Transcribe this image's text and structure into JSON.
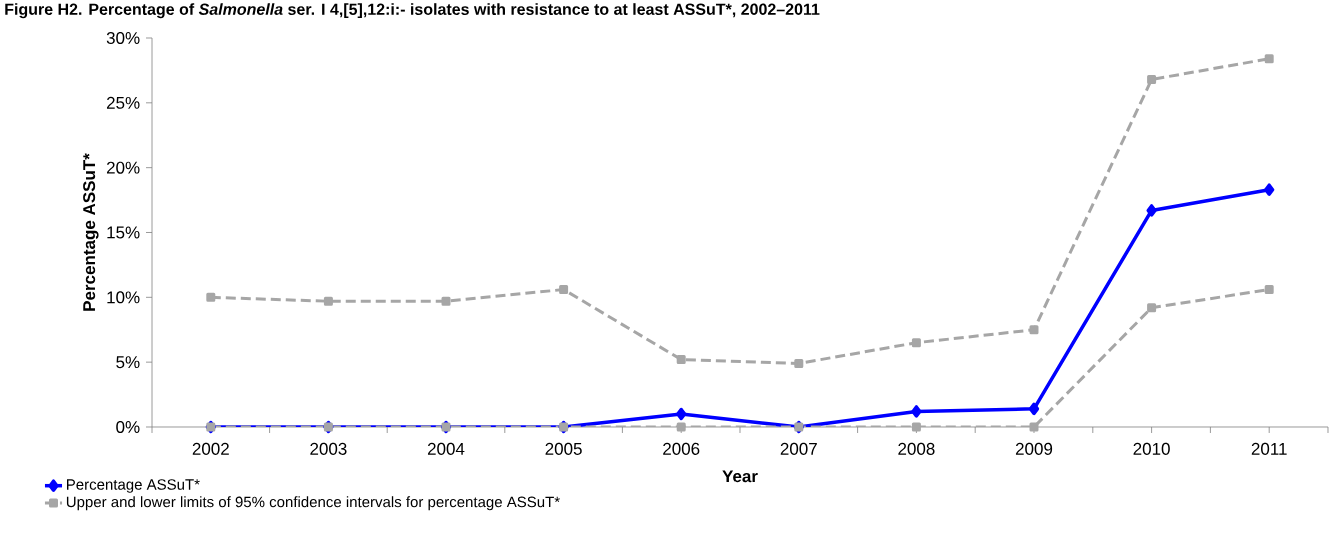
{
  "chart_data": {
    "type": "line",
    "title": "Figure H2. Percentage of *Salmonella* ser. I 4,[5],12:i:- isolates with resistance to at least ASSuT*, 2002–2011",
    "xlabel": "Year",
    "ylabel": "Percentage  ASSuT*",
    "categories": [
      "2002",
      "2003",
      "2004",
      "2005",
      "2006",
      "2007",
      "2008",
      "2009",
      "2010",
      "2011"
    ],
    "series": [
      {
        "name": "Percentage ASSuT*",
        "color": "#0000ff",
        "marker": "diamond",
        "line_style": "solid",
        "values": [
          0,
          0,
          0,
          0,
          1.0,
          0,
          1.2,
          1.4,
          16.7,
          18.3
        ]
      },
      {
        "name": "Upper and lower limits of 95% confidence intervals for percentage ASSuT*",
        "color": "#a6a6a6",
        "marker": "square",
        "line_style": "dashed",
        "values": [
          10.0,
          9.7,
          9.7,
          10.6,
          5.2,
          4.9,
          6.5,
          7.5,
          26.8,
          28.4
        ]
      },
      {
        "color": "#a6a6a6",
        "marker": "square",
        "line_style": "dashed",
        "values": [
          0,
          0,
          0,
          0,
          0,
          0,
          0,
          0,
          9.2,
          10.6
        ]
      }
    ],
    "ylim": [
      0,
      30
    ],
    "yticks": [
      {
        "value": 0,
        "label": "0%"
      },
      {
        "value": 5,
        "label": "5%"
      },
      {
        "value": 10,
        "label": "10%"
      },
      {
        "value": 15,
        "label": "15%"
      },
      {
        "value": 20,
        "label": "20%"
      },
      {
        "value": 25,
        "label": "25%"
      },
      {
        "value": 30,
        "label": "30%"
      }
    ],
    "grid": false,
    "legend": "bottom left"
  }
}
